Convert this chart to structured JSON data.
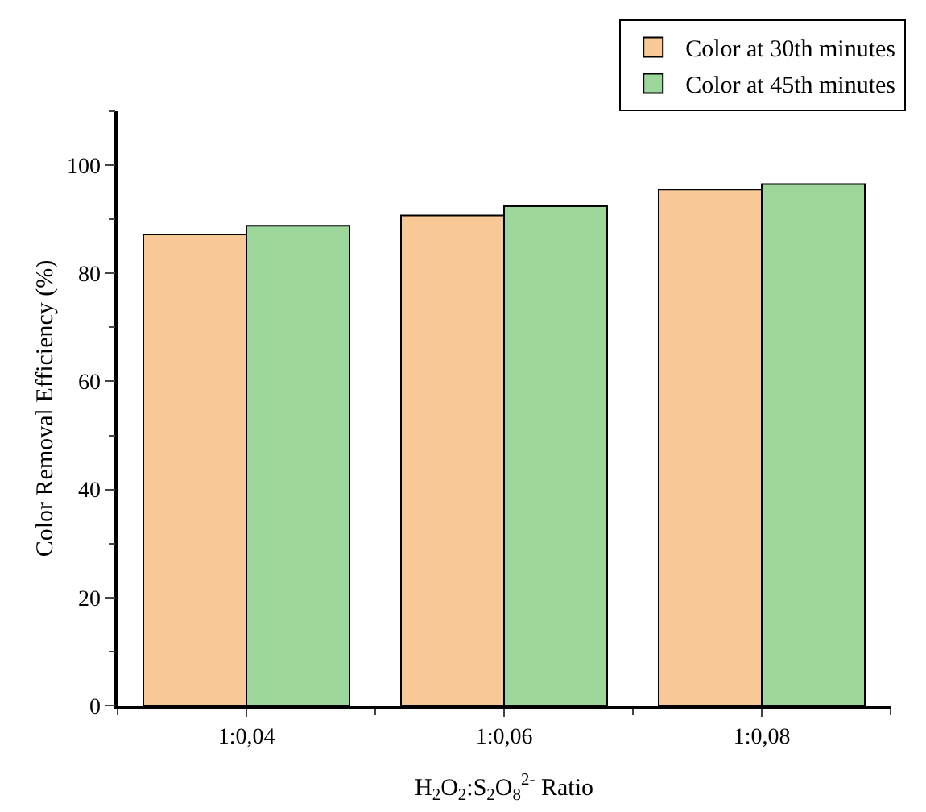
{
  "chart_data": {
    "type": "bar",
    "xlabel": "H$_{2}$O$_{2}$:S$_{2}$O$_{8}$$^{2-}$ Ratio",
    "ylabel": "Color Removal Efficiency (%)",
    "categories": [
      "1:0,04",
      "1:0,06",
      "1:0,08"
    ],
    "series": [
      {
        "name": "Color at 30th minutes",
        "color": "#f9c897",
        "values": [
          87.2,
          90.7,
          95.5
        ]
      },
      {
        "name": "Color at 45th minutes",
        "color": "#9dd69a",
        "values": [
          88.8,
          92.4,
          96.5
        ]
      }
    ],
    "ylim": [
      0,
      110
    ],
    "yticks": [
      0,
      20,
      40,
      60,
      80,
      100
    ],
    "grid": false,
    "legend": "top right"
  }
}
